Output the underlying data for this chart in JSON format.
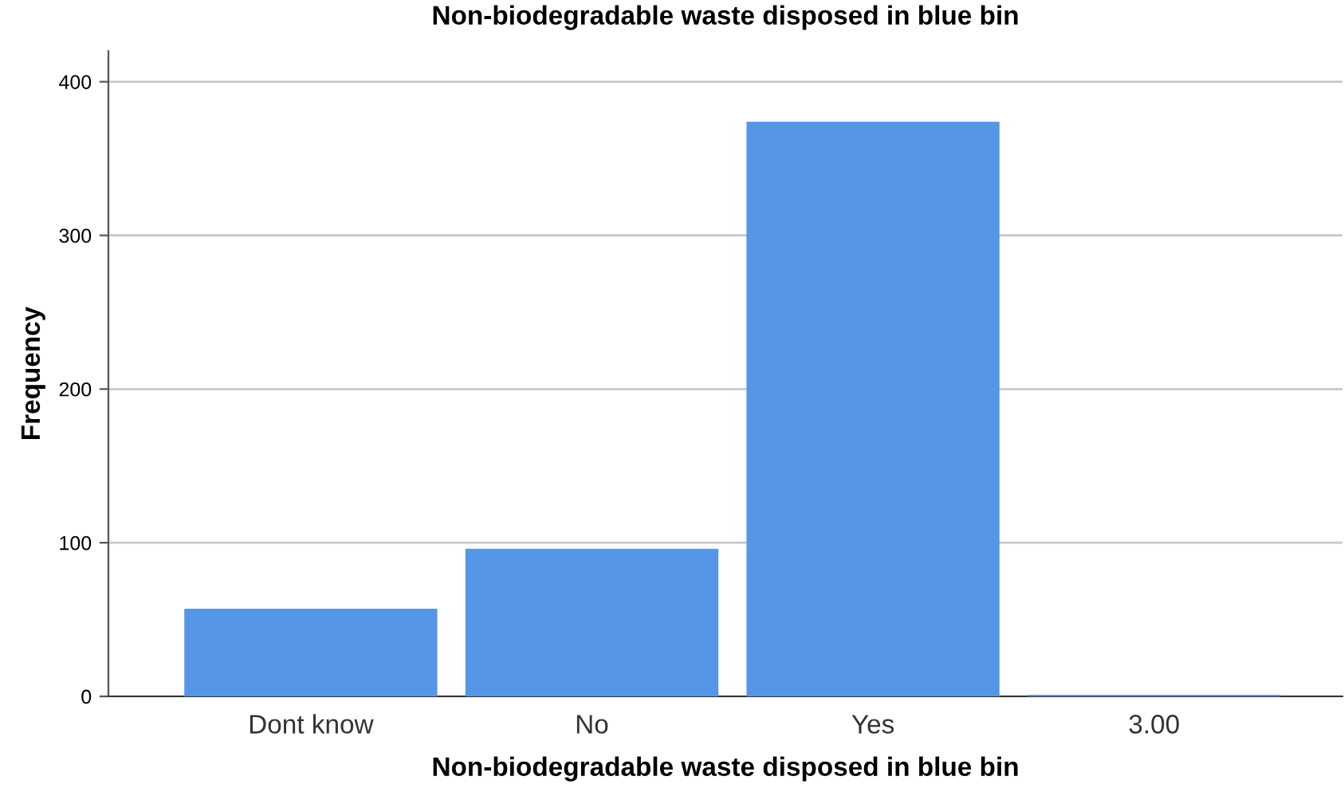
{
  "chart_data": {
    "type": "bar",
    "title": "Non-biodegradable waste disposed in blue bin",
    "xlabel": "Non-biodegradable waste disposed in blue bin",
    "ylabel": "Frequency",
    "categories": [
      "Dont know",
      "No",
      "Yes",
      "3.00"
    ],
    "values": [
      57,
      96,
      374,
      1
    ],
    "color": "#5596e6",
    "ylim": [
      0,
      420
    ],
    "yticks": [
      0,
      100,
      200,
      300,
      400
    ],
    "grid": "y"
  }
}
